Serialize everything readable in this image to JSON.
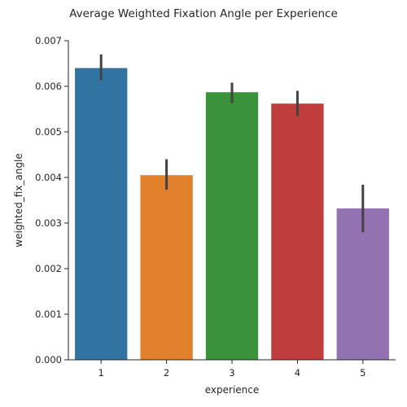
{
  "chart_data": {
    "type": "bar",
    "title": "Average Weighted Fixation Angle per Experience",
    "xlabel": "experience",
    "ylabel": "weighted_fix_angle",
    "categories": [
      "1",
      "2",
      "3",
      "4",
      "5"
    ],
    "values": [
      0.0064,
      0.00405,
      0.00587,
      0.00562,
      0.00332
    ],
    "error_low": [
      0.00613,
      0.00373,
      0.00563,
      0.00535,
      0.0028
    ],
    "error_high": [
      0.0067,
      0.0044,
      0.00608,
      0.0059,
      0.00384
    ],
    "colors": [
      "#3274a1",
      "#e1812c",
      "#3a923a",
      "#c03d3e",
      "#9372b2"
    ],
    "error_bar_color": "#424242",
    "ylim": [
      0,
      0.007
    ],
    "yticks": [
      "0.000",
      "0.001",
      "0.002",
      "0.003",
      "0.004",
      "0.005",
      "0.006",
      "0.007"
    ],
    "grid": false,
    "legend": "none"
  }
}
